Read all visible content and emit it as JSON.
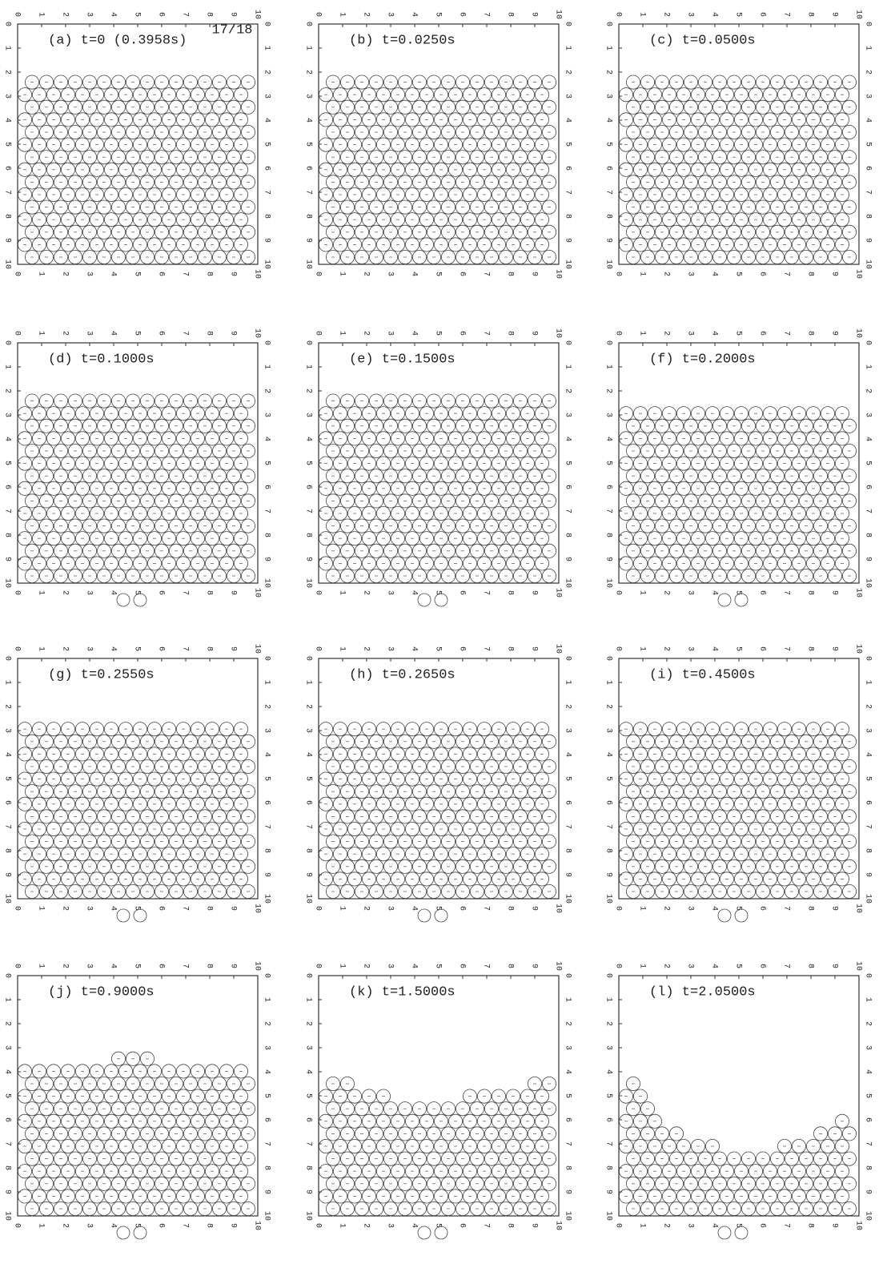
{
  "page": {
    "stamp": "17/18",
    "ticks": [
      0,
      1,
      2,
      3,
      4,
      5,
      6,
      7,
      8,
      9,
      10
    ],
    "panels": [
      {
        "label": "(a) t=0 (0.3958s)"
      },
      {
        "label": "(b) t=0.0250s"
      },
      {
        "label": "(c) t=0.0500s"
      },
      {
        "label": "(d) t=0.1000s"
      },
      {
        "label": "(e) t=0.1500s"
      },
      {
        "label": "(f) t=0.2000s"
      },
      {
        "label": "(g) t=0.2550s"
      },
      {
        "label": "(h) t=0.2650s"
      },
      {
        "label": "(i) t=0.4500s"
      },
      {
        "label": "(j) t=0.9000s"
      },
      {
        "label": "(k) t=1.5000s"
      },
      {
        "label": "(l) t=2.0500s"
      }
    ]
  }
}
